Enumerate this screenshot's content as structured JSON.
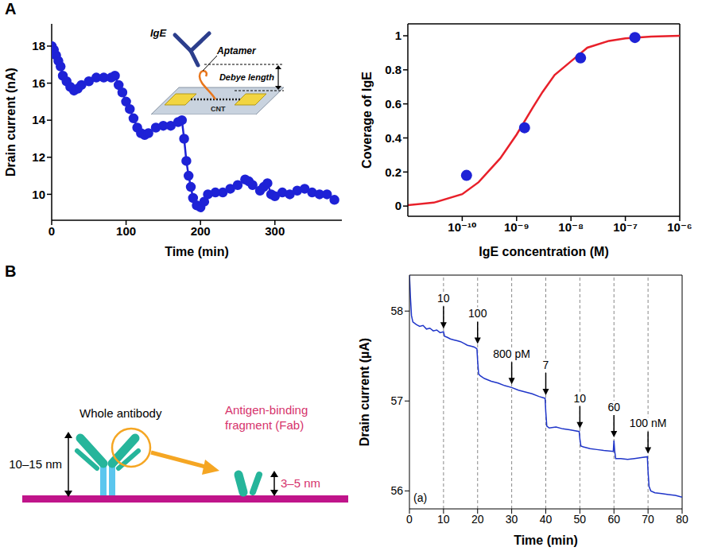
{
  "panel_labels": [
    "A",
    "B"
  ],
  "chart_data": [
    {
      "type": "line",
      "x_label": "Time (min)",
      "y_label": "Drain current (nA)",
      "x": [
        0,
        3,
        6,
        9,
        12,
        15,
        20,
        25,
        30,
        35,
        40,
        50,
        60,
        70,
        80,
        85,
        90,
        95,
        100,
        105,
        110,
        115,
        120,
        125,
        130,
        140,
        150,
        160,
        170,
        175,
        178,
        181,
        184,
        187,
        190,
        195,
        200,
        205,
        210,
        220,
        230,
        240,
        250,
        260,
        265,
        270,
        280,
        285,
        290,
        295,
        300,
        310,
        320,
        330,
        340,
        350,
        360,
        370,
        380
      ],
      "values": [
        18,
        17.8,
        17.5,
        17.2,
        16.9,
        16.4,
        16.1,
        15.8,
        15.6,
        15.7,
        15.9,
        16.1,
        16.3,
        16.3,
        16.3,
        16.4,
        15.9,
        15.5,
        15.0,
        14.6,
        14.1,
        13.6,
        13.3,
        13.2,
        13.3,
        13.6,
        13.7,
        13.7,
        13.9,
        14.0,
        13.0,
        11.8,
        11.0,
        10.4,
        9.8,
        9.4,
        9.3,
        9.6,
        10.0,
        10.1,
        10.1,
        10.3,
        10.5,
        10.8,
        10.7,
        10.5,
        10.2,
        10.4,
        10.6,
        10.0,
        9.9,
        10.1,
        10.0,
        10.2,
        10.3,
        10.1,
        10.0,
        10.0,
        9.7
      ],
      "color": "#1e22d6",
      "marker": "circle",
      "xlim": [
        0,
        390
      ],
      "xticks": [
        0,
        100,
        200,
        300
      ],
      "ylim": [
        8.6,
        19.2
      ],
      "yticks": [
        10,
        12,
        14,
        16,
        18
      ]
    },
    {
      "type": "scatter",
      "x_label": "IgE concentration (M)",
      "y_label": "Coverage of IgE",
      "log": "x",
      "series": [
        {
          "type": "line",
          "color": "#e8202a",
          "x": [
            1e-11,
            3e-11,
            1e-10,
            2e-10,
            5e-10,
            1e-09,
            2e-09,
            3e-09,
            5e-09,
            1e-08,
            2e-08,
            5e-08,
            1e-07,
            3e-07,
            1e-06
          ],
          "values": [
            0.005,
            0.02,
            0.07,
            0.14,
            0.28,
            0.42,
            0.58,
            0.67,
            0.77,
            0.85,
            0.93,
            0.97,
            0.985,
            0.995,
            1.0
          ]
        },
        {
          "type": "scatter",
          "color": "#1e22d6",
          "marker": "circle",
          "x": [
            1.2e-10,
            1.4e-09,
            1.5e-08,
            1.5e-07
          ],
          "values": [
            0.18,
            0.46,
            0.87,
            0.99
          ]
        }
      ],
      "xlim": [
        1e-11,
        1e-06
      ],
      "xticks": [
        {
          "value": 1e-10,
          "label": "10⁻¹⁰"
        },
        {
          "value": 1e-09,
          "label": "10⁻⁹"
        },
        {
          "value": 1e-08,
          "label": "10⁻⁸"
        },
        {
          "value": 1e-07,
          "label": "10⁻⁷"
        },
        {
          "value": 1e-06,
          "label": "10⁻⁶"
        }
      ],
      "ylim": [
        -0.06,
        1.07
      ],
      "yticks": [
        0,
        0.2,
        0.4,
        0.6,
        0.8,
        1
      ]
    },
    {
      "type": "line",
      "x_label": "Time (min)",
      "y_label": "Drain current (µA)",
      "x": [
        0,
        0.3,
        0.6,
        1,
        2,
        3,
        4,
        5,
        6,
        7,
        8,
        9,
        10,
        10.3,
        11,
        12,
        13,
        14,
        15,
        16,
        17,
        18,
        19,
        19.8,
        20,
        20.3,
        20.8,
        22,
        24,
        26,
        28,
        30,
        32,
        34,
        36,
        38,
        39.8,
        40,
        40.3,
        41,
        43,
        45,
        47,
        49.8,
        50,
        50.3,
        51,
        53,
        55,
        57,
        59.8,
        60,
        60.2,
        60.5,
        62,
        64,
        66,
        68,
        69.8,
        70,
        70.3,
        70.8,
        72,
        74,
        76,
        78,
        80
      ],
      "values": [
        58.4,
        58.15,
        57.95,
        57.88,
        57.85,
        57.83,
        57.84,
        57.8,
        57.81,
        57.78,
        57.79,
        57.76,
        57.77,
        57.72,
        57.71,
        57.69,
        57.68,
        57.67,
        57.66,
        57.64,
        57.62,
        57.61,
        57.6,
        57.58,
        57.45,
        57.3,
        57.28,
        57.25,
        57.22,
        57.2,
        57.17,
        57.15,
        57.12,
        57.1,
        57.08,
        57.05,
        57.03,
        56.88,
        56.72,
        56.7,
        56.71,
        56.69,
        56.68,
        56.66,
        56.58,
        56.5,
        56.49,
        56.47,
        56.46,
        56.45,
        56.44,
        56.56,
        56.45,
        56.36,
        56.36,
        56.35,
        56.36,
        56.37,
        56.38,
        56.22,
        56.05,
        56.0,
        55.98,
        55.97,
        55.96,
        55.95,
        55.93
      ],
      "color": "#1f35c9",
      "xlim": [
        0,
        80
      ],
      "xticks": [
        0,
        10,
        20,
        30,
        40,
        50,
        60,
        70,
        80
      ],
      "ylim": [
        55.8,
        58.4
      ],
      "yticks": [
        56,
        57,
        58
      ],
      "annotations": [
        {
          "x": 10,
          "label": "10"
        },
        {
          "x": 20,
          "label": "100"
        },
        {
          "x": 30,
          "label": "800 pM"
        },
        {
          "x": 40,
          "label": "7"
        },
        {
          "x": 50,
          "label": "10"
        },
        {
          "x": 60,
          "label": "60"
        },
        {
          "x": 70,
          "label": "100 nM"
        }
      ],
      "inset_label": "(a)"
    }
  ],
  "diagrams": {
    "aptamer_inset": {
      "antibody": "IgE",
      "probe": "Aptamer",
      "length": "Debye length",
      "channel": "CNT"
    },
    "antibody_sizes": {
      "whole": {
        "label": "Whole antibody",
        "height": "10–15 nm"
      },
      "fragment": {
        "label": "Antigen-binding fragment (Fab)",
        "height": "3–5 nm"
      }
    }
  }
}
